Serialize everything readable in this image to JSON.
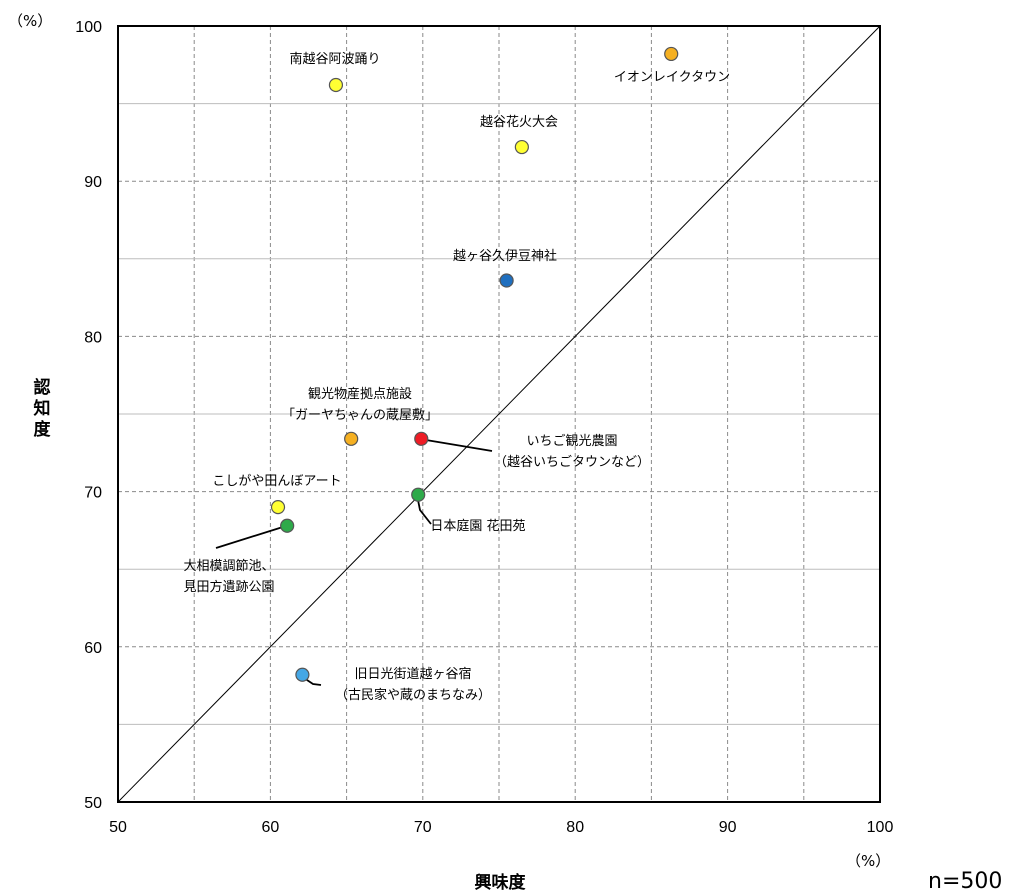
{
  "chart_data": {
    "type": "scatter",
    "xlabel": "興味度",
    "ylabel": "認知度",
    "x_unit": "（%）",
    "y_unit": "（%）",
    "xlim": [
      50,
      100
    ],
    "ylim": [
      50,
      100
    ],
    "x_ticks": [
      "50",
      "60",
      "70",
      "80",
      "90",
      "100"
    ],
    "y_ticks": [
      "50",
      "60",
      "70",
      "80",
      "90",
      "100"
    ],
    "grid": true,
    "reference_line": "y = x",
    "sample_note": "n=500",
    "points": [
      {
        "label": [
          "南越谷阿波踊り"
        ],
        "x": 64.3,
        "y": 96.2,
        "color": "#ffff33"
      },
      {
        "label": [
          "イオンレイクタウン"
        ],
        "x": 86.3,
        "y": 98.2,
        "color": "#f5b022"
      },
      {
        "label": [
          "越谷花火大会"
        ],
        "x": 76.5,
        "y": 92.2,
        "color": "#ffff33"
      },
      {
        "label": [
          "越ヶ谷久伊豆神社"
        ],
        "x": 75.5,
        "y": 83.6,
        "color": "#1f6fbf"
      },
      {
        "label": [
          "観光物産拠点施設",
          "「ガーヤちゃんの蔵屋敷」"
        ],
        "x": 65.3,
        "y": 73.4,
        "color": "#f5b022"
      },
      {
        "label": [
          "いちご観光農園",
          "（越谷いちごタウンなど）"
        ],
        "x": 69.9,
        "y": 73.4,
        "color": "#ee1c25"
      },
      {
        "label": [
          "こしがや田んぼアート"
        ],
        "x": 60.5,
        "y": 69.0,
        "color": "#ffff33"
      },
      {
        "label": [
          "日本庭園 花田苑"
        ],
        "x": 69.7,
        "y": 69.8,
        "color": "#2eaa4a"
      },
      {
        "label": [
          "大相模調節池、",
          "見田方遺跡公園"
        ],
        "x": 61.1,
        "y": 67.8,
        "color": "#2eaa4a"
      },
      {
        "label": [
          "旧日光街道越ヶ谷宿",
          "（古民家や蔵のまちなみ）"
        ],
        "x": 62.1,
        "y": 58.2,
        "color": "#45a7e5"
      }
    ]
  }
}
